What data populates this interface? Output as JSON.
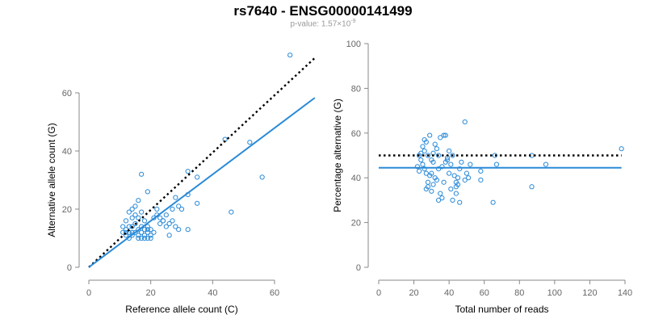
{
  "header": {
    "title": "rs7640 - ENSG00000141499",
    "pvalue_prefix": "p-value: 1.57×10",
    "pvalue_exponent": "-9"
  },
  "colors": {
    "points": "#2a8ad8",
    "fit": "#2a8ad8",
    "reference": "#000000"
  },
  "chart_data": [
    {
      "type": "scatter",
      "xlabel": "Reference allele count (C)",
      "ylabel": "Alternative allele count (G)",
      "xlim": [
        0,
        72
      ],
      "ylim": [
        0,
        65
      ],
      "xticks": [
        0,
        20,
        40,
        60
      ],
      "yticks": [
        0,
        20,
        40,
        60
      ],
      "grid": false,
      "fit_line": {
        "x": [
          0,
          73
        ],
        "y": [
          0,
          58.3
        ],
        "style": "solid"
      },
      "reference_line": {
        "x": [
          0,
          73
        ],
        "y": [
          0,
          72
        ],
        "style": "dotted"
      },
      "points": [
        [
          65,
          73
        ],
        [
          44,
          44
        ],
        [
          52,
          43
        ],
        [
          56,
          31
        ],
        [
          46,
          19
        ],
        [
          32,
          33
        ],
        [
          35,
          31
        ],
        [
          17,
          32
        ],
        [
          19,
          26
        ],
        [
          28,
          24
        ],
        [
          30,
          20
        ],
        [
          35,
          22
        ],
        [
          32,
          25
        ],
        [
          29,
          21
        ],
        [
          27,
          20
        ],
        [
          25,
          18
        ],
        [
          22,
          18
        ],
        [
          23,
          17
        ],
        [
          24,
          16
        ],
        [
          26,
          15
        ],
        [
          27,
          16
        ],
        [
          28,
          14
        ],
        [
          29,
          13
        ],
        [
          25,
          14
        ],
        [
          26,
          11
        ],
        [
          32,
          13
        ],
        [
          16,
          23
        ],
        [
          15,
          21
        ],
        [
          14,
          20
        ],
        [
          13,
          19
        ],
        [
          12,
          16
        ],
        [
          14,
          17
        ],
        [
          15,
          18
        ],
        [
          16,
          17
        ],
        [
          17,
          19
        ],
        [
          18,
          16
        ],
        [
          19,
          14
        ],
        [
          20,
          13
        ],
        [
          21,
          12
        ],
        [
          20,
          11
        ],
        [
          19,
          10
        ],
        [
          18,
          11
        ],
        [
          17,
          12
        ],
        [
          16,
          13
        ],
        [
          15,
          12
        ],
        [
          14,
          11
        ],
        [
          13,
          12
        ],
        [
          12,
          13
        ],
        [
          11,
          12
        ],
        [
          12,
          11
        ],
        [
          13,
          10
        ],
        [
          14,
          14
        ],
        [
          15,
          15
        ],
        [
          16,
          11
        ],
        [
          17,
          10
        ],
        [
          18,
          10
        ],
        [
          19,
          12
        ],
        [
          20,
          10
        ],
        [
          18,
          13
        ],
        [
          16,
          10
        ],
        [
          13,
          14
        ],
        [
          21,
          17
        ],
        [
          23,
          15
        ],
        [
          22,
          20
        ],
        [
          24,
          16
        ],
        [
          11,
          14
        ],
        [
          12,
          12
        ],
        [
          14,
          12
        ],
        [
          17,
          14
        ],
        [
          19,
          13
        ]
      ]
    },
    {
      "type": "scatter",
      "xlabel": "Total number of reads",
      "ylabel": "Percentage alternative (G)",
      "xlim": [
        0,
        140
      ],
      "ylim": [
        0,
        100
      ],
      "xticks": [
        0,
        20,
        40,
        60,
        80,
        100,
        120,
        140
      ],
      "yticks": [
        0,
        20,
        40,
        60,
        80,
        100
      ],
      "grid": false,
      "fit_line": {
        "x": [
          0,
          138
        ],
        "y": [
          44.5,
          44.5
        ],
        "style": "solid"
      },
      "reference_line": {
        "x": [
          0,
          138
        ],
        "y": [
          50,
          50
        ],
        "style": "dotted"
      },
      "points": [
        [
          138,
          53
        ],
        [
          49,
          65
        ],
        [
          87,
          50
        ],
        [
          87,
          36
        ],
        [
          95,
          46
        ],
        [
          65,
          29
        ],
        [
          66,
          50
        ],
        [
          67,
          46
        ],
        [
          58,
          43
        ],
        [
          58,
          39
        ],
        [
          52,
          46
        ],
        [
          50,
          42
        ],
        [
          49,
          39
        ],
        [
          51,
          40
        ],
        [
          46,
          44
        ],
        [
          45,
          40
        ],
        [
          44,
          36
        ],
        [
          44,
          33
        ],
        [
          43,
          41
        ],
        [
          46,
          29
        ],
        [
          42,
          30
        ],
        [
          41,
          35
        ],
        [
          40,
          42
        ],
        [
          40,
          52
        ],
        [
          41,
          46
        ],
        [
          38,
          59
        ],
        [
          37,
          59
        ],
        [
          35,
          58
        ],
        [
          38,
          47
        ],
        [
          39,
          49
        ],
        [
          33,
          53
        ],
        [
          32,
          55
        ],
        [
          34,
          50
        ],
        [
          31,
          47
        ],
        [
          30,
          42
        ],
        [
          29,
          41
        ],
        [
          28,
          38
        ],
        [
          28,
          36
        ],
        [
          30,
          34
        ],
        [
          27,
          35
        ],
        [
          29,
          59
        ],
        [
          27,
          56
        ],
        [
          26,
          52
        ],
        [
          25,
          54
        ],
        [
          24,
          51
        ],
        [
          24,
          48
        ],
        [
          25,
          46
        ],
        [
          26,
          44
        ],
        [
          27,
          42
        ],
        [
          22,
          45
        ],
        [
          23,
          43
        ],
        [
          23,
          50
        ],
        [
          31,
          37
        ],
        [
          33,
          39
        ],
        [
          34,
          44
        ],
        [
          36,
          45
        ],
        [
          37,
          38
        ],
        [
          39,
          48
        ],
        [
          42,
          50
        ],
        [
          44,
          38
        ],
        [
          45,
          37
        ],
        [
          34,
          30
        ],
        [
          35,
          33
        ],
        [
          32,
          40
        ],
        [
          36,
          31
        ],
        [
          26,
          57
        ],
        [
          28,
          50
        ],
        [
          30,
          48
        ],
        [
          31,
          51
        ],
        [
          47,
          47
        ]
      ]
    }
  ]
}
